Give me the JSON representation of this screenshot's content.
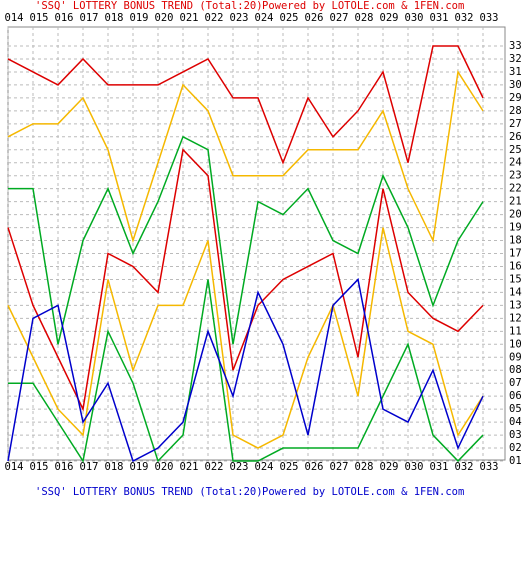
{
  "chart_data": {
    "type": "line",
    "title": "'SSQ' LOTTERY BONUS TREND (Total:20)",
    "subtitle": "Powered by LOTOLE.com & 1FEN.com",
    "categories": [
      "014",
      "015",
      "016",
      "017",
      "018",
      "019",
      "020",
      "021",
      "022",
      "023",
      "024",
      "025",
      "026",
      "027",
      "028",
      "029",
      "030",
      "031",
      "032",
      "033"
    ],
    "series": [
      {
        "color": "#dd0000",
        "values": [
          32,
          31,
          30,
          32,
          30,
          30,
          30,
          31,
          32,
          29,
          29,
          24,
          29,
          26,
          28,
          31,
          24,
          33,
          33,
          29
        ]
      },
      {
        "color": "#f5b800",
        "values": [
          26,
          27,
          27,
          29,
          25,
          18,
          24,
          30,
          28,
          23,
          23,
          23,
          25,
          25,
          25,
          28,
          22,
          18,
          31,
          28
        ]
      },
      {
        "color": "#00aa22",
        "values": [
          22,
          22,
          10,
          18,
          22,
          17,
          21,
          26,
          25,
          10,
          21,
          20,
          22,
          18,
          17,
          23,
          19,
          13,
          18,
          21
        ]
      },
      {
        "color": "#dd0000",
        "values": [
          19,
          13,
          9,
          5,
          17,
          16,
          14,
          25,
          23,
          8,
          13,
          15,
          16,
          17,
          9,
          22,
          14,
          12,
          11,
          13
        ]
      },
      {
        "color": "#f5b800",
        "values": [
          13,
          9,
          5,
          3,
          15,
          8,
          13,
          13,
          18,
          3,
          2,
          3,
          9,
          13,
          6,
          19,
          11,
          10,
          3,
          6
        ]
      },
      {
        "color": "#00aa22",
        "values": [
          7,
          7,
          4,
          1,
          11,
          7,
          1,
          3,
          15,
          1,
          1,
          2,
          2,
          2,
          2,
          6,
          10,
          3,
          1,
          3
        ]
      },
      {
        "color": "#0000cc",
        "values": [
          1,
          12,
          13,
          4,
          7,
          1,
          2,
          4,
          11,
          6,
          14,
          10,
          3,
          13,
          15,
          5,
          4,
          8,
          2,
          6
        ]
      }
    ],
    "ylim": [
      1,
      33
    ],
    "yticks": [
      {
        "value": 1,
        "label": "01"
      },
      {
        "value": 2,
        "label": "02"
      },
      {
        "value": 3,
        "label": "03"
      },
      {
        "value": 4,
        "label": "04"
      },
      {
        "value": 5,
        "label": "05"
      },
      {
        "value": 6,
        "label": "06"
      },
      {
        "value": 7,
        "label": "07"
      },
      {
        "value": 8,
        "label": "08"
      },
      {
        "value": 9,
        "label": "09"
      },
      10,
      11,
      12,
      13,
      14,
      15,
      16,
      17,
      18,
      19,
      20,
      21,
      22,
      23,
      24,
      25,
      26,
      27,
      28,
      29,
      30,
      31,
      32,
      33
    ],
    "grid": true
  }
}
